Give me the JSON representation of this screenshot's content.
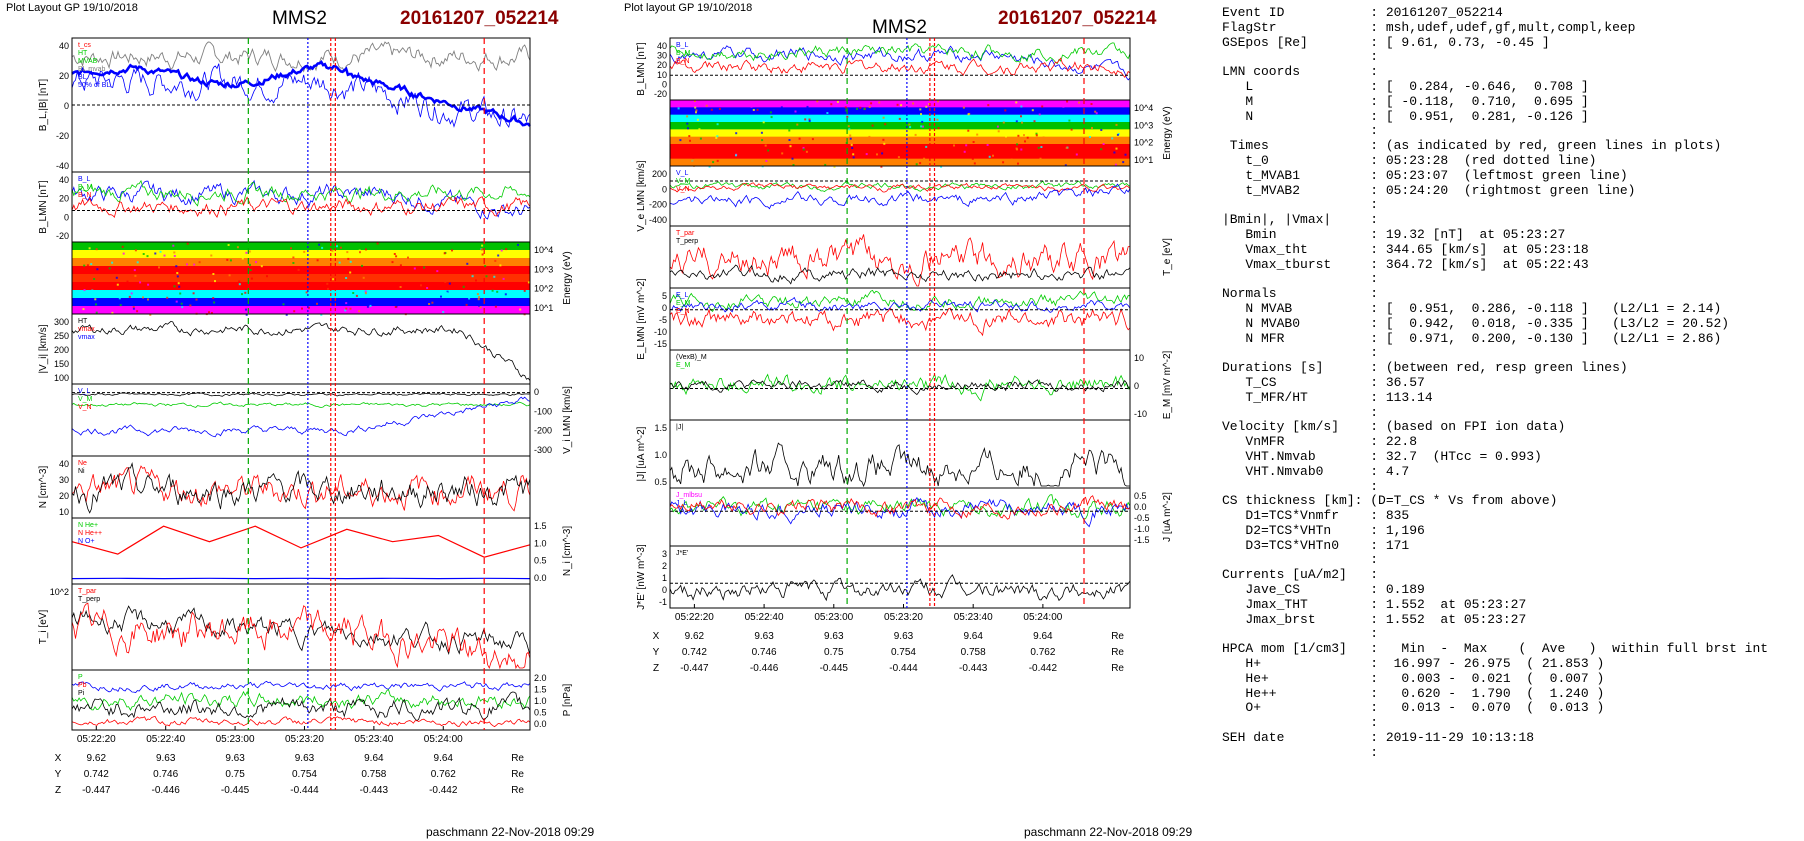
{
  "left_plot": {
    "layout_label": "Plot Layout GP 19/10/2018",
    "spacecraft": "MMS2",
    "event": "20161207_052214",
    "footer": "paschmann 22-Nov-2018 09:29",
    "time_ticks": [
      "05:22:20",
      "05:22:40",
      "05:23:00",
      "05:23:20",
      "05:23:40",
      "05:24:00"
    ],
    "ephem": {
      "rows": [
        {
          "label": "X",
          "values": [
            "9.62",
            "9.63",
            "9.63",
            "9.63",
            "9.64",
            "9.64"
          ],
          "unit": "Re"
        },
        {
          "label": "Y",
          "values": [
            "0.742",
            "0.746",
            "0.75",
            "0.754",
            "0.758",
            "0.762"
          ],
          "unit": "Re"
        },
        {
          "label": "Z",
          "values": [
            "-0.447",
            "-0.446",
            "-0.445",
            "-0.444",
            "-0.443",
            "-0.442"
          ],
          "unit": "Re"
        }
      ]
    },
    "panels": [
      {
        "key": "bl",
        "ylabel": "B_L,|B| [nT]",
        "ticks": [
          "40",
          "20",
          "0",
          "-20",
          "-40"
        ],
        "legend": [
          "t_cs",
          "HT",
          "MVAB",
          "BL mvab",
          "BL",
          "50% of BL"
        ]
      },
      {
        "key": "blmn",
        "ylabel": "B_LMN [nT]",
        "ticks": [
          "40",
          "20",
          "0",
          "-20"
        ],
        "legend": [
          "B_L",
          "B_M",
          "B_N"
        ]
      },
      {
        "key": "spec",
        "ylabel": "Energy (eV)",
        "ticks": [
          "10^4",
          "10^3",
          "10^2",
          "10^1"
        ],
        "legend": []
      },
      {
        "key": "vi",
        "ylabel": "|V_i| [km/s]",
        "ticks": [
          "300",
          "250",
          "200",
          "150",
          "100"
        ],
        "legend": [
          "HT",
          "vmax",
          "vmax"
        ]
      },
      {
        "key": "vilmn",
        "ylabel": "V_i LMN [km/s]",
        "ticks": [
          "0",
          "-100",
          "-200",
          "-300"
        ],
        "legend": [
          "V_L",
          "V_M",
          "V_N"
        ]
      },
      {
        "key": "n",
        "ylabel": "N [cm^-3]",
        "ticks": [
          "40",
          "30",
          "20",
          "10"
        ],
        "legend": [
          "Ne",
          "Ni"
        ]
      },
      {
        "key": "nhpca",
        "ylabel": "N_i [cm^-3]",
        "ticks": [
          "1.5",
          "1.0",
          "0.5",
          "0.0"
        ],
        "legend": [
          "N He+",
          "N He++",
          "N O+"
        ]
      },
      {
        "key": "ti",
        "ylabel": "T_i [eV]",
        "ticks": [
          "10^2"
        ],
        "legend": [
          "T_par",
          "T_perp"
        ]
      },
      {
        "key": "p",
        "ylabel": "P [nPa]",
        "ticks": [
          "2.0",
          "1.5",
          "1.0",
          "0.5",
          "0.0"
        ],
        "legend": [
          "P",
          "Pb",
          "Pi"
        ]
      }
    ]
  },
  "right_plot": {
    "layout_label": "Plot layout GP 19/10/2018",
    "spacecraft": "MMS2",
    "event": "20161207_052214",
    "footer": "paschmann 22-Nov-2018 09:29",
    "time_ticks": [
      "05:22:20",
      "05:22:40",
      "05:23:00",
      "05:23:20",
      "05:23:40",
      "05:24:00"
    ],
    "ephem": {
      "rows": [
        {
          "label": "X",
          "values": [
            "9.62",
            "9.63",
            "9.63",
            "9.63",
            "9.64",
            "9.64"
          ],
          "unit": "Re"
        },
        {
          "label": "Y",
          "values": [
            "0.742",
            "0.746",
            "0.75",
            "0.754",
            "0.758",
            "0.762"
          ],
          "unit": "Re"
        },
        {
          "label": "Z",
          "values": [
            "-0.447",
            "-0.446",
            "-0.445",
            "-0.444",
            "-0.443",
            "-0.442"
          ],
          "unit": "Re"
        }
      ]
    },
    "panels": [
      {
        "key": "blmn",
        "ylabel": "B_LMN [nT]",
        "ticks": [
          "40",
          "30",
          "20",
          "10",
          "0",
          "-20"
        ],
        "legend": [
          "B_L",
          "B_M",
          "B_N"
        ]
      },
      {
        "key": "spec",
        "ylabel": "Energy (eV)",
        "ticks": [
          "10^4",
          "10^3",
          "10^2",
          "10^1"
        ],
        "legend": []
      },
      {
        "key": "ve",
        "ylabel": "V_e LMN [km/s]",
        "ticks": [
          "200",
          "0",
          "-200",
          "-400"
        ],
        "legend": [
          "V_L",
          "V_M",
          "V_N"
        ]
      },
      {
        "key": "te",
        "ylabel": "T_e [eV]",
        "ticks": [],
        "legend": [
          "T_par",
          "T_perp"
        ]
      },
      {
        "key": "e",
        "ylabel": "E_LMN [mV m^-2]",
        "ticks": [
          "5",
          "0",
          "-5",
          "-10",
          "-15"
        ],
        "legend": [
          "E_L",
          "E_M",
          "E_N"
        ]
      },
      {
        "key": "em",
        "ylabel": "E_M [mV m^-2]",
        "ticks": [
          "10",
          "0",
          "-10"
        ],
        "legend": [
          "(VexB)_M",
          "E_M"
        ]
      },
      {
        "key": "j",
        "ylabel": "|J| [uA m^-2]",
        "ticks": [
          "1.5",
          "1.0",
          "0.5"
        ],
        "legend": [
          "|J|"
        ]
      },
      {
        "key": "jlmn",
        "ylabel": "J [uA m^-2]",
        "ticks": [
          "0.5",
          "0.0",
          "-0.5",
          "-1.0",
          "-1.5"
        ],
        "legend": [
          "J_mlbsu",
          "J_L"
        ]
      },
      {
        "key": "je",
        "ylabel": "J*E' [nW m^-3]",
        "ticks": [
          "3",
          "2",
          "1",
          "0",
          "-1"
        ],
        "legend": [
          "J*E'"
        ]
      }
    ]
  },
  "info_lines": [
    "Event ID           : 20161207_052214",
    "FlagStr            : msh,udef,udef,gf,mult,compl,keep",
    "GSEpos [Re]        : [ 9.61, 0.73, -0.45 ]",
    "                   :",
    "LMN coords         :",
    "   L               : [  0.284, -0.646,  0.708 ]",
    "   M               : [ -0.118,  0.710,  0.695 ]",
    "   N               : [  0.951,  0.281, -0.126 ]",
    "                   :",
    " Times             : (as indicated by red, green lines in plots)",
    "   t_0             : 05:23:28  (red dotted line)",
    "   t_MVAB1         : 05:23:07  (leftmost green line)",
    "   t_MVAB2         : 05:24:20  (rightmost green line)",
    "                   :",
    "|Bmin|, |Vmax|     :",
    "   Bmin            : 19.32 [nT]  at 05:23:27",
    "   Vmax_tht        : 344.65 [km/s]  at 05:23:18",
    "   Vmax_tburst     : 364.72 [km/s]  at 05:22:43",
    "                   :",
    "Normals            :",
    "   N MVAB          : [  0.951,  0.286, -0.118 ]   (L2/L1 = 2.14)",
    "   N MVAB0         : [  0.942,  0.018, -0.335 ]   (L3/L2 = 20.52)",
    "   N MFR           : [  0.971,  0.200, -0.130 ]   (L2/L1 = 2.86)",
    "                   :",
    "Durations [s]      : (between red, resp green lines)",
    "   T_CS            : 36.57",
    "   T_MFR/HT        : 113.14",
    "                   :",
    "Velocity [km/s]    : (based on FPI ion data)",
    "   VnMFR           : 22.8",
    "   VHT.Nmvab       : 32.7  (HTcc = 0.993)",
    "   VHT.Nmvab0      : 4.7",
    "                   :",
    "CS thickness [km]: (D=T_CS * Vs from above)",
    "   D1=TCS*Vnmfr    : 835",
    "   D2=TCS*VHTn     : 1,196",
    "   D3=TCS*VHTn0    : 171",
    "                   :",
    "Currents [uA/m2]   :",
    "   Jave_CS         : 0.189",
    "   Jmax_THT        : 1.552  at 05:23:27",
    "   Jmax_brst       : 1.552  at 05:23:27",
    "                   :",
    "HPCA mom [1/cm3]   :   Min  -  Max    (  Ave   )  within full brst int",
    "   H+              :  16.997 - 26.975  ( 21.853 )",
    "   He+             :   0.003 -  0.021  (  0.007 )",
    "   He++            :   0.620 -  1.790  (  1.240 )",
    "   O+              :   0.013 -  0.070  (  0.013 )",
    "                   :",
    "SEH date           : 2019-11-29 10:13:18",
    "                   :"
  ],
  "colors": {
    "red": "#ff0000",
    "green": "#00cc00",
    "blue": "#0000ff",
    "black": "#000000",
    "gray": "#808080",
    "title_red": "#8b0000"
  }
}
